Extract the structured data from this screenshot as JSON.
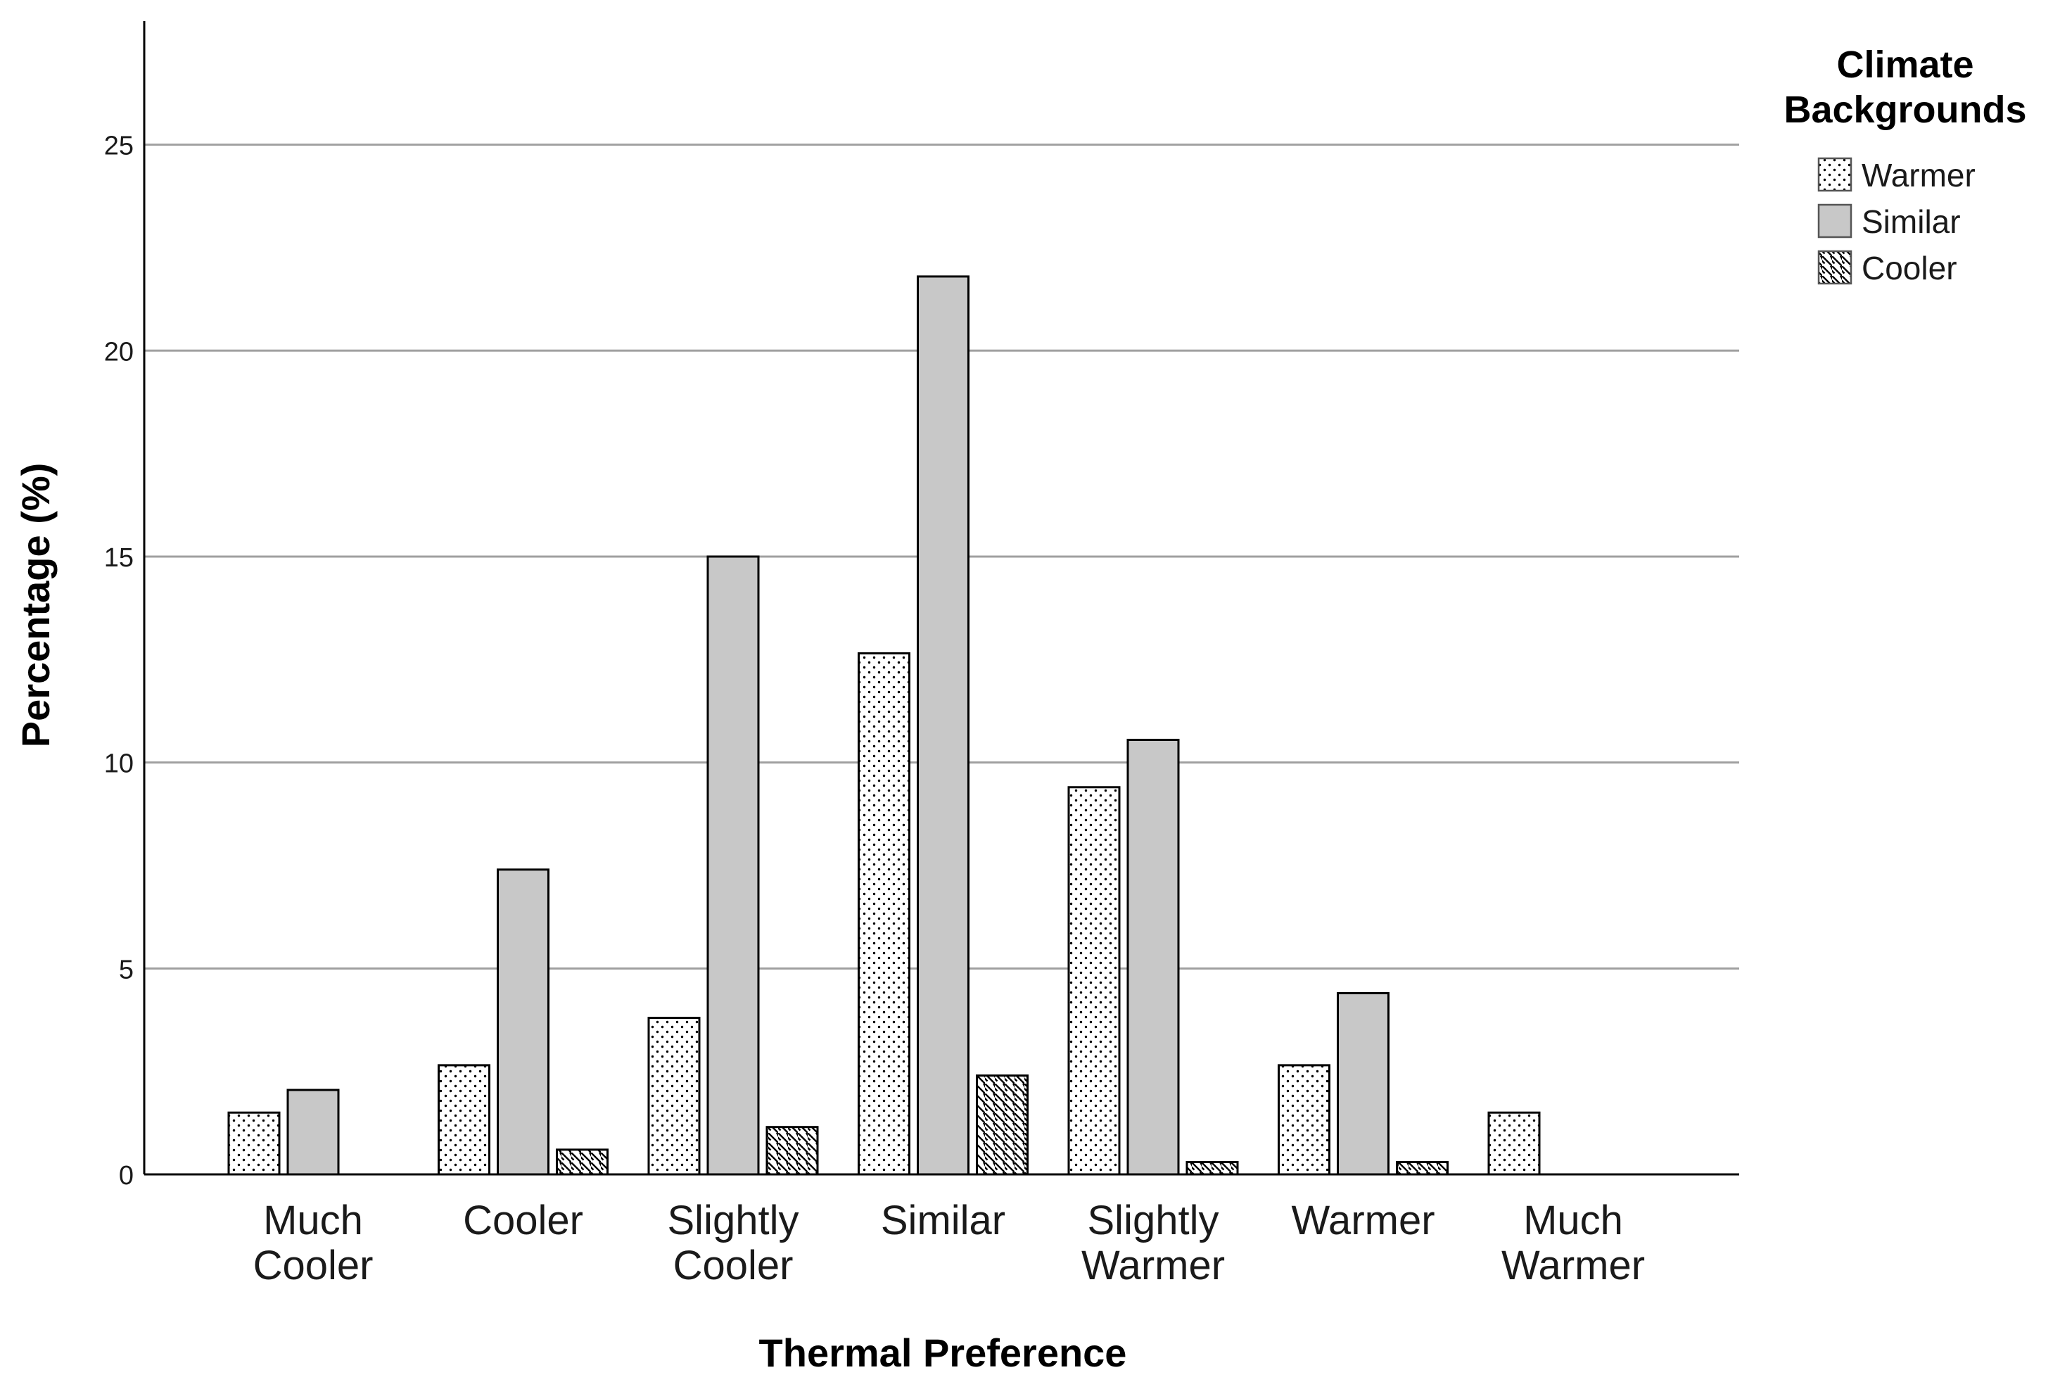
{
  "chart_data": {
    "type": "bar",
    "categories": [
      [
        "Much",
        "Cooler"
      ],
      [
        "Cooler"
      ],
      [
        "Slightly",
        "Cooler"
      ],
      [
        "Similar"
      ],
      [
        "Slightly",
        "Warmer"
      ],
      [
        "Warmer"
      ],
      [
        "Much",
        "Warmer"
      ]
    ],
    "series": [
      {
        "name": "Warmer",
        "pattern": "dots",
        "values": [
          1.5,
          2.65,
          3.8,
          12.65,
          9.4,
          2.65,
          1.5
        ]
      },
      {
        "name": "Similar",
        "pattern": "solid",
        "values": [
          2.05,
          7.4,
          15.0,
          21.8,
          10.55,
          4.4,
          0
        ]
      },
      {
        "name": "Cooler",
        "pattern": "hatch",
        "values": [
          0,
          0.6,
          1.15,
          2.4,
          0.3,
          0.3,
          0
        ]
      }
    ],
    "xlabel": "Thermal Preference",
    "ylabel": "Percentage (%)",
    "ylim": [
      0,
      28
    ],
    "yticks": [
      0,
      5,
      10,
      15,
      20,
      25
    ],
    "grid": "horizontal",
    "legend": {
      "title": [
        "Climate",
        "Backgrounds"
      ],
      "placement": "top-right"
    },
    "colors": {
      "bar_fill": "#c8c8c8",
      "bar_stroke": "#000000",
      "pattern_bg": "#ffffff",
      "grid": "#a0a0a0",
      "axis": "#000000"
    }
  }
}
